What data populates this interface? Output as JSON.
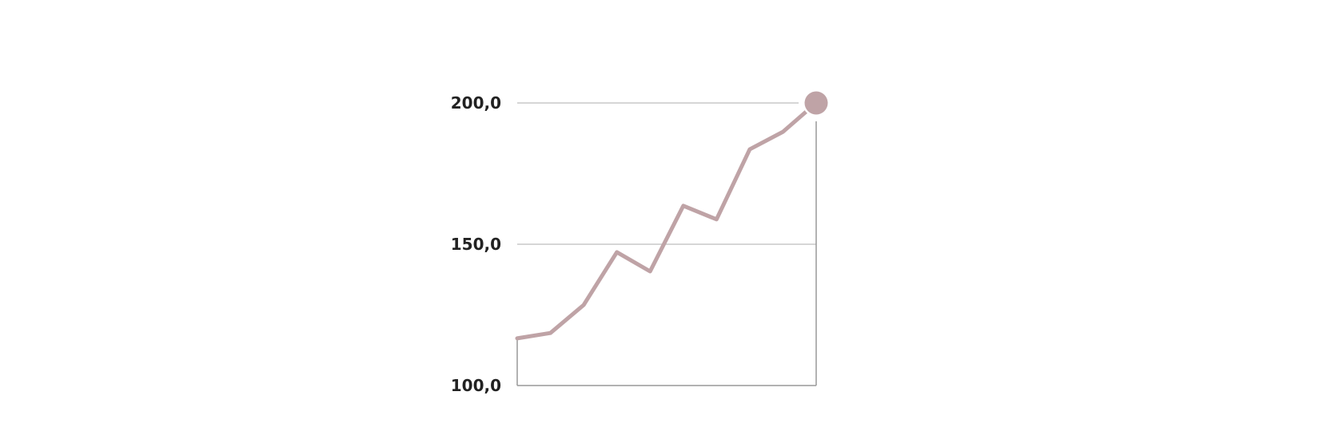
{
  "chart_data": {
    "type": "line",
    "title": "",
    "xlabel": "",
    "ylabel": "",
    "ylim": [
      100,
      200
    ],
    "y_ticks": [
      {
        "value": 100,
        "label": "100,0"
      },
      {
        "value": 150,
        "label": "150,0"
      },
      {
        "value": 200,
        "label": "200,0"
      }
    ],
    "grid": true,
    "x": [
      1,
      2,
      3,
      4,
      5,
      6,
      7,
      8,
      9,
      10
    ],
    "values": [
      116.7,
      118.6,
      128.5,
      147.2,
      140.4,
      163.6,
      158.8,
      183.6,
      189.8,
      200.0
    ],
    "end_marker": true,
    "colors": {
      "line": "#bfa3a6",
      "grid": "#c8c8c8",
      "axis": "#999999",
      "text": "#222222"
    }
  }
}
